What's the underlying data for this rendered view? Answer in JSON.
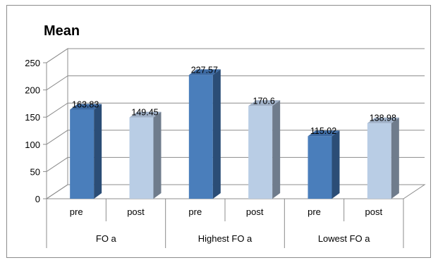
{
  "chart_data": {
    "type": "bar",
    "title": "Mean",
    "groups": [
      "FO a",
      "Highest FO a",
      "Lowest FO a"
    ],
    "categories": [
      "pre",
      "post",
      "pre",
      "post",
      "pre",
      "post"
    ],
    "values": [
      163.83,
      149.45,
      227.57,
      170.6,
      115.02,
      138.98
    ],
    "labels": [
      "163.83",
      "149.45",
      "227.57",
      "170.6",
      "115.02",
      "138.98"
    ],
    "ylim": [
      0,
      250
    ],
    "yticks": [
      "0",
      "50",
      "100",
      "150",
      "200",
      "250"
    ],
    "grid": true,
    "legend": "none",
    "colors": {
      "pre": "#4a7ebb",
      "pre_side": "#2b4d76",
      "pre_top": "#3d6aa2",
      "post": "#b9cde5",
      "post_side": "#6f7c8c",
      "post_top": "#9fb0c7"
    }
  }
}
